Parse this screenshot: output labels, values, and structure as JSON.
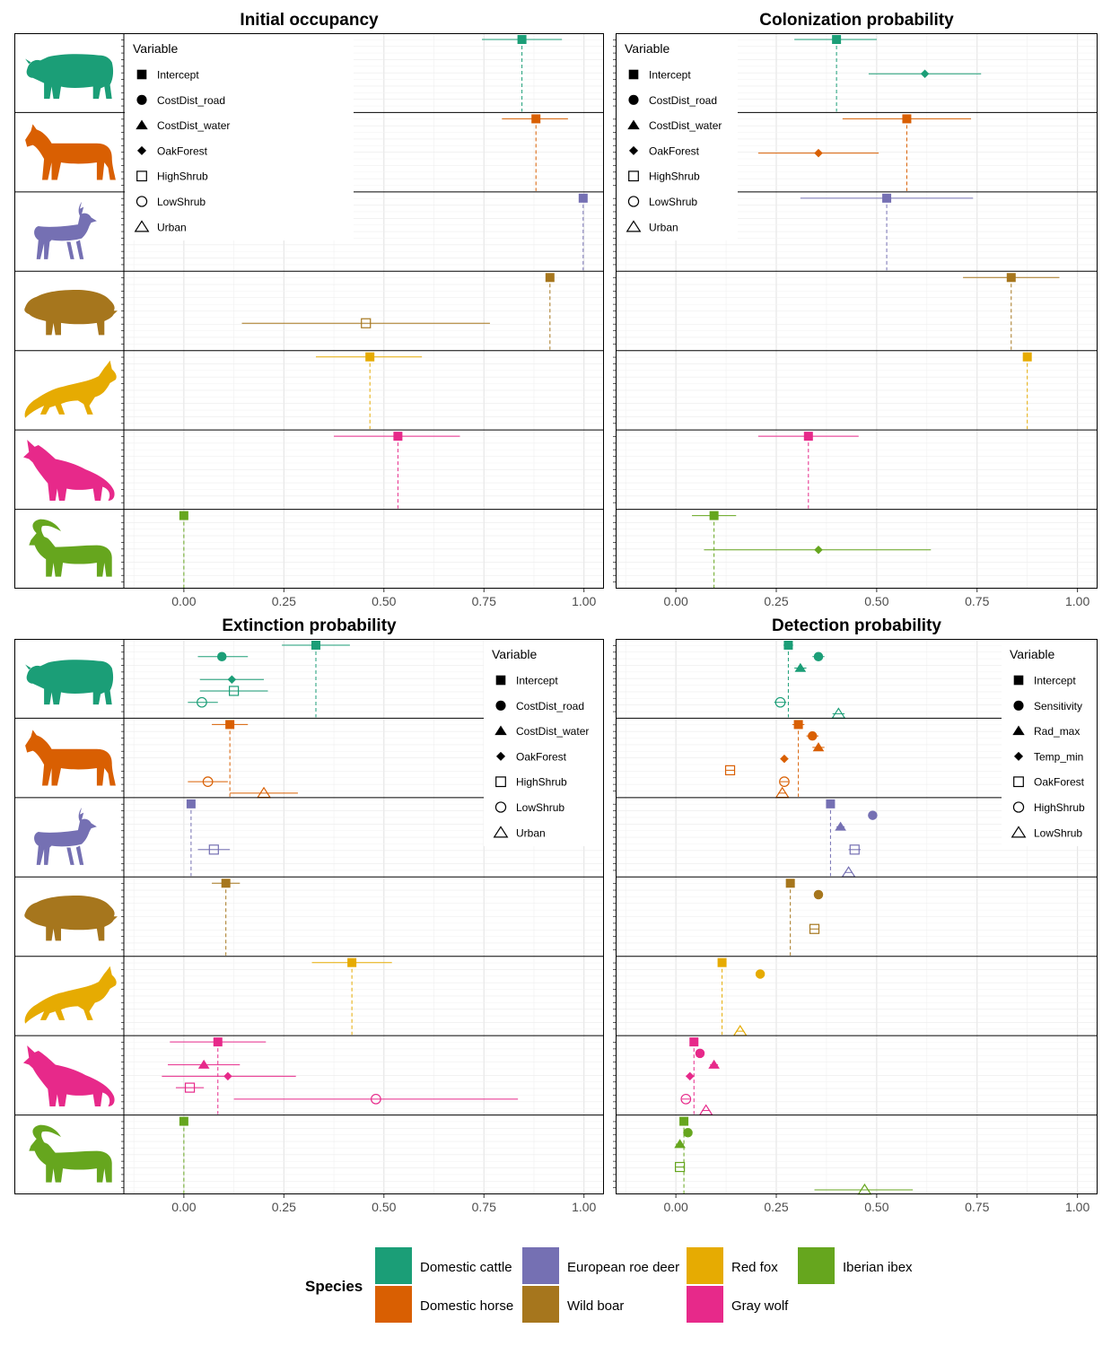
{
  "colors": {
    "cattle": "#1B9E77",
    "horse": "#D95F02",
    "roedeer": "#7570B3",
    "boar": "#A6761D",
    "fox": "#E6AB02",
    "wolf": "#E7298A",
    "ibex": "#66A61E"
  },
  "species_rows": [
    "cattle",
    "horse",
    "roedeer",
    "boar",
    "fox",
    "wolf",
    "ibex"
  ],
  "species_icons": [
    "cattle-icon",
    "horse-icon",
    "roe-deer-icon",
    "wild-boar-icon",
    "red-fox-icon",
    "gray-wolf-icon",
    "iberian-ibex-icon"
  ],
  "species_legend": {
    "title": "Species",
    "items": [
      {
        "key": "cattle",
        "label": "Domestic cattle"
      },
      {
        "key": "horse",
        "label": "Domestic horse"
      },
      {
        "key": "roedeer",
        "label": "European roe deer"
      },
      {
        "key": "boar",
        "label": "Wild boar"
      },
      {
        "key": "fox",
        "label": "Red fox"
      },
      {
        "key": "wolf",
        "label": "Gray wolf"
      },
      {
        "key": "ibex",
        "label": "Iberian ibex"
      }
    ]
  },
  "chart_data": [
    {
      "type": "scatter",
      "title": "Initial occupancy",
      "xlim": [
        -0.15,
        1.05
      ],
      "x_ticks": [
        0,
        0.25,
        0.5,
        0.75,
        1
      ],
      "x_tick_labels": [
        "0.00",
        "0.25",
        "0.50",
        "0.75",
        "1.00"
      ],
      "legend": {
        "title": "Variable",
        "position": "top-left",
        "items": [
          {
            "label": "Intercept",
            "shape": "square"
          },
          {
            "label": "CostDist_road",
            "shape": "circle"
          },
          {
            "label": "CostDist_water",
            "shape": "triangle"
          },
          {
            "label": "OakForest",
            "shape": "diamond"
          },
          {
            "label": "HighShrub",
            "shape": "open-square"
          },
          {
            "label": "LowShrub",
            "shape": "open-circle"
          },
          {
            "label": "Urban",
            "shape": "open-triangle"
          }
        ]
      },
      "points": [
        {
          "species": "cattle",
          "variable": "Intercept",
          "x": 0.845,
          "lo": 0.745,
          "hi": 0.945
        },
        {
          "species": "horse",
          "variable": "Intercept",
          "x": 0.88,
          "lo": 0.795,
          "hi": 0.96
        },
        {
          "species": "roedeer",
          "variable": "Intercept",
          "x": 0.998,
          "lo": 0.996,
          "hi": 1.0
        },
        {
          "species": "boar",
          "variable": "Intercept",
          "x": 0.915,
          "lo": 0.912,
          "hi": 0.918
        },
        {
          "species": "boar",
          "variable": "HighShrub",
          "x": 0.455,
          "lo": 0.145,
          "hi": 0.765
        },
        {
          "species": "fox",
          "variable": "Intercept",
          "x": 0.465,
          "lo": 0.33,
          "hi": 0.595
        },
        {
          "species": "wolf",
          "variable": "Intercept",
          "x": 0.535,
          "lo": 0.375,
          "hi": 0.69
        },
        {
          "species": "ibex",
          "variable": "Intercept",
          "x": 0.0,
          "lo": -0.005,
          "hi": 0.005
        }
      ]
    },
    {
      "type": "scatter",
      "title": "Colonization probability",
      "xlim": [
        -0.15,
        1.05
      ],
      "x_ticks": [
        0,
        0.25,
        0.5,
        0.75,
        1
      ],
      "x_tick_labels": [
        "0.00",
        "0.25",
        "0.50",
        "0.75",
        "1.00"
      ],
      "legend": {
        "title": "Variable",
        "position": "top-left",
        "items": [
          {
            "label": "Intercept",
            "shape": "square"
          },
          {
            "label": "CostDist_road",
            "shape": "circle"
          },
          {
            "label": "CostDist_water",
            "shape": "triangle"
          },
          {
            "label": "OakForest",
            "shape": "diamond"
          },
          {
            "label": "HighShrub",
            "shape": "open-square"
          },
          {
            "label": "LowShrub",
            "shape": "open-circle"
          },
          {
            "label": "Urban",
            "shape": "open-triangle"
          }
        ]
      },
      "points": [
        {
          "species": "cattle",
          "variable": "Intercept",
          "x": 0.4,
          "lo": 0.295,
          "hi": 0.5
        },
        {
          "species": "cattle",
          "variable": "OakForest",
          "x": 0.62,
          "lo": 0.48,
          "hi": 0.76
        },
        {
          "species": "horse",
          "variable": "Intercept",
          "x": 0.575,
          "lo": 0.415,
          "hi": 0.735
        },
        {
          "species": "horse",
          "variable": "OakForest",
          "x": 0.355,
          "lo": 0.205,
          "hi": 0.505
        },
        {
          "species": "roedeer",
          "variable": "Intercept",
          "x": 0.525,
          "lo": 0.31,
          "hi": 0.74
        },
        {
          "species": "boar",
          "variable": "Intercept",
          "x": 0.835,
          "lo": 0.715,
          "hi": 0.955
        },
        {
          "species": "fox",
          "variable": "Intercept",
          "x": 0.875,
          "lo": 0.872,
          "hi": 0.878
        },
        {
          "species": "wolf",
          "variable": "Intercept",
          "x": 0.33,
          "lo": 0.205,
          "hi": 0.455
        },
        {
          "species": "ibex",
          "variable": "Intercept",
          "x": 0.095,
          "lo": 0.04,
          "hi": 0.15
        },
        {
          "species": "ibex",
          "variable": "OakForest",
          "x": 0.355,
          "lo": 0.07,
          "hi": 0.635
        }
      ]
    },
    {
      "type": "scatter",
      "title": "Extinction probability",
      "xlim": [
        -0.15,
        1.05
      ],
      "x_ticks": [
        0,
        0.25,
        0.5,
        0.75,
        1
      ],
      "x_tick_labels": [
        "0.00",
        "0.25",
        "0.50",
        "0.75",
        "1.00"
      ],
      "legend": {
        "title": "Variable",
        "position": "top-right",
        "items": [
          {
            "label": "Intercept",
            "shape": "square"
          },
          {
            "label": "CostDist_road",
            "shape": "circle"
          },
          {
            "label": "CostDist_water",
            "shape": "triangle"
          },
          {
            "label": "OakForest",
            "shape": "diamond"
          },
          {
            "label": "HighShrub",
            "shape": "open-square"
          },
          {
            "label": "LowShrub",
            "shape": "open-circle"
          },
          {
            "label": "Urban",
            "shape": "open-triangle"
          }
        ]
      },
      "points": [
        {
          "species": "cattle",
          "variable": "Intercept",
          "x": 0.33,
          "lo": 0.245,
          "hi": 0.415
        },
        {
          "species": "cattle",
          "variable": "CostDist_road",
          "x": 0.095,
          "lo": 0.035,
          "hi": 0.16
        },
        {
          "species": "cattle",
          "variable": "OakForest",
          "x": 0.12,
          "lo": 0.04,
          "hi": 0.2
        },
        {
          "species": "cattle",
          "variable": "HighShrub",
          "x": 0.125,
          "lo": 0.04,
          "hi": 0.21
        },
        {
          "species": "cattle",
          "variable": "LowShrub",
          "x": 0.045,
          "lo": 0.01,
          "hi": 0.085
        },
        {
          "species": "horse",
          "variable": "Intercept",
          "x": 0.115,
          "lo": 0.07,
          "hi": 0.16
        },
        {
          "species": "horse",
          "variable": "LowShrub",
          "x": 0.06,
          "lo": 0.01,
          "hi": 0.11
        },
        {
          "species": "horse",
          "variable": "Urban",
          "x": 0.2,
          "lo": 0.115,
          "hi": 0.285
        },
        {
          "species": "roedeer",
          "variable": "Intercept",
          "x": 0.018,
          "lo": 0.016,
          "hi": 0.02
        },
        {
          "species": "roedeer",
          "variable": "HighShrub",
          "x": 0.075,
          "lo": 0.035,
          "hi": 0.115
        },
        {
          "species": "boar",
          "variable": "Intercept",
          "x": 0.105,
          "lo": 0.07,
          "hi": 0.14
        },
        {
          "species": "fox",
          "variable": "Intercept",
          "x": 0.42,
          "lo": 0.32,
          "hi": 0.52
        },
        {
          "species": "wolf",
          "variable": "Intercept",
          "x": 0.085,
          "lo": -0.035,
          "hi": 0.205
        },
        {
          "species": "wolf",
          "variable": "CostDist_water",
          "x": 0.05,
          "lo": -0.04,
          "hi": 0.14
        },
        {
          "species": "wolf",
          "variable": "OakForest",
          "x": 0.11,
          "lo": -0.055,
          "hi": 0.28
        },
        {
          "species": "wolf",
          "variable": "HighShrub",
          "x": 0.015,
          "lo": -0.02,
          "hi": 0.05
        },
        {
          "species": "wolf",
          "variable": "LowShrub",
          "x": 0.48,
          "lo": 0.125,
          "hi": 0.835
        },
        {
          "species": "ibex",
          "variable": "Intercept",
          "x": 0.0,
          "lo": -0.005,
          "hi": 0.005
        }
      ]
    },
    {
      "type": "scatter",
      "title": "Detection probability",
      "xlim": [
        -0.15,
        1.05
      ],
      "x_ticks": [
        0,
        0.25,
        0.5,
        0.75,
        1
      ],
      "x_tick_labels": [
        "0.00",
        "0.25",
        "0.50",
        "0.75",
        "1.00"
      ],
      "legend": {
        "title": "Variable",
        "position": "top-right",
        "items": [
          {
            "label": "Intercept",
            "shape": "square"
          },
          {
            "label": "Sensitivity",
            "shape": "circle"
          },
          {
            "label": "Rad_max",
            "shape": "triangle"
          },
          {
            "label": "Temp_min",
            "shape": "diamond"
          },
          {
            "label": "OakForest",
            "shape": "open-square"
          },
          {
            "label": "HighShrub",
            "shape": "open-circle"
          },
          {
            "label": "LowShrub",
            "shape": "open-triangle"
          }
        ]
      },
      "points": [
        {
          "species": "cattle",
          "variable": "Intercept",
          "x": 0.28,
          "lo": 0.268,
          "hi": 0.292
        },
        {
          "species": "cattle",
          "variable": "Sensitivity",
          "x": 0.355,
          "lo": 0.34,
          "hi": 0.37
        },
        {
          "species": "cattle",
          "variable": "Rad_max",
          "x": 0.31,
          "lo": 0.295,
          "hi": 0.325
        },
        {
          "species": "cattle",
          "variable": "HighShrub",
          "x": 0.26,
          "lo": 0.245,
          "hi": 0.275
        },
        {
          "species": "cattle",
          "variable": "LowShrub",
          "x": 0.405,
          "lo": 0.39,
          "hi": 0.42
        },
        {
          "species": "horse",
          "variable": "Intercept",
          "x": 0.305,
          "lo": 0.29,
          "hi": 0.32
        },
        {
          "species": "horse",
          "variable": "Sensitivity",
          "x": 0.34,
          "lo": 0.325,
          "hi": 0.355
        },
        {
          "species": "horse",
          "variable": "Rad_max",
          "x": 0.355,
          "lo": 0.34,
          "hi": 0.37
        },
        {
          "species": "horse",
          "variable": "Temp_min",
          "x": 0.27,
          "lo": 0.26,
          "hi": 0.28
        },
        {
          "species": "horse",
          "variable": "OakForest",
          "x": 0.135,
          "lo": 0.125,
          "hi": 0.145
        },
        {
          "species": "horse",
          "variable": "HighShrub",
          "x": 0.27,
          "lo": 0.26,
          "hi": 0.28
        },
        {
          "species": "horse",
          "variable": "LowShrub",
          "x": 0.265,
          "lo": 0.255,
          "hi": 0.275
        },
        {
          "species": "roedeer",
          "variable": "Intercept",
          "x": 0.385,
          "lo": 0.375,
          "hi": 0.395
        },
        {
          "species": "roedeer",
          "variable": "Sensitivity",
          "x": 0.49,
          "lo": 0.48,
          "hi": 0.5
        },
        {
          "species": "roedeer",
          "variable": "Rad_max",
          "x": 0.41,
          "lo": 0.4,
          "hi": 0.42
        },
        {
          "species": "roedeer",
          "variable": "OakForest",
          "x": 0.445,
          "lo": 0.43,
          "hi": 0.46
        },
        {
          "species": "roedeer",
          "variable": "LowShrub",
          "x": 0.43,
          "lo": 0.42,
          "hi": 0.44
        },
        {
          "species": "boar",
          "variable": "Intercept",
          "x": 0.285,
          "lo": 0.275,
          "hi": 0.295
        },
        {
          "species": "boar",
          "variable": "Sensitivity",
          "x": 0.355,
          "lo": 0.345,
          "hi": 0.365
        },
        {
          "species": "boar",
          "variable": "OakForest",
          "x": 0.345,
          "lo": 0.335,
          "hi": 0.355
        },
        {
          "species": "fox",
          "variable": "Intercept",
          "x": 0.115,
          "lo": 0.105,
          "hi": 0.125
        },
        {
          "species": "fox",
          "variable": "Sensitivity",
          "x": 0.21,
          "lo": 0.2,
          "hi": 0.22
        },
        {
          "species": "fox",
          "variable": "LowShrub",
          "x": 0.16,
          "lo": 0.15,
          "hi": 0.17
        },
        {
          "species": "wolf",
          "variable": "Intercept",
          "x": 0.045,
          "lo": 0.035,
          "hi": 0.055
        },
        {
          "species": "wolf",
          "variable": "Sensitivity",
          "x": 0.06,
          "lo": 0.05,
          "hi": 0.07
        },
        {
          "species": "wolf",
          "variable": "Rad_max",
          "x": 0.095,
          "lo": 0.085,
          "hi": 0.105
        },
        {
          "species": "wolf",
          "variable": "Temp_min",
          "x": 0.035,
          "lo": 0.025,
          "hi": 0.045
        },
        {
          "species": "wolf",
          "variable": "HighShrub",
          "x": 0.025,
          "lo": 0.015,
          "hi": 0.035
        },
        {
          "species": "wolf",
          "variable": "LowShrub",
          "x": 0.075,
          "lo": 0.065,
          "hi": 0.085
        },
        {
          "species": "ibex",
          "variable": "Intercept",
          "x": 0.02,
          "lo": 0.01,
          "hi": 0.03
        },
        {
          "species": "ibex",
          "variable": "Sensitivity",
          "x": 0.03,
          "lo": 0.02,
          "hi": 0.04
        },
        {
          "species": "ibex",
          "variable": "Rad_max",
          "x": 0.01,
          "lo": 0.0,
          "hi": 0.02
        },
        {
          "species": "ibex",
          "variable": "OakForest",
          "x": 0.01,
          "lo": 0.0,
          "hi": 0.02
        },
        {
          "species": "ibex",
          "variable": "LowShrub",
          "x": 0.47,
          "lo": 0.345,
          "hi": 0.59
        }
      ]
    }
  ]
}
